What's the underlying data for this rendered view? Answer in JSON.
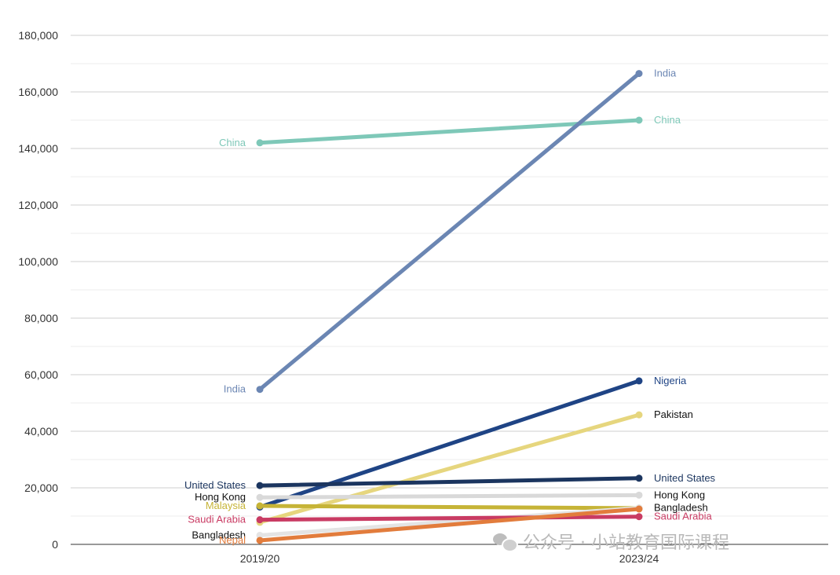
{
  "chart_data": {
    "type": "line",
    "categories": [
      "2019/20",
      "2023/24"
    ],
    "ylim": [
      0,
      180000
    ],
    "yticks": [
      0,
      20000,
      40000,
      60000,
      80000,
      100000,
      120000,
      140000,
      160000,
      180000
    ],
    "ytick_labels": [
      "0",
      "20,000",
      "40,000",
      "60,000",
      "80,000",
      "100,000",
      "120,000",
      "140,000",
      "160,000",
      "180,000"
    ],
    "grid": true,
    "series": [
      {
        "name": "China",
        "values": [
          142000,
          150000
        ],
        "color": "#7ec8b8",
        "label_color": "#7ec8b8",
        "labels": [
          "China",
          "China"
        ]
      },
      {
        "name": "India",
        "values": [
          54800,
          166500
        ],
        "color": "#6b86b3",
        "label_color": "#6b86b3",
        "labels": [
          "India",
          "India"
        ]
      },
      {
        "name": "Nigeria",
        "values": [
          13200,
          57800
        ],
        "color": "#1f4485",
        "label_color": "#1f4485",
        "labels": [
          "",
          "Nigeria"
        ]
      },
      {
        "name": "Pakistan",
        "values": [
          7800,
          45800
        ],
        "color": "#e6d67e",
        "label_color": "#111111",
        "labels": [
          "",
          "Pakistan"
        ]
      },
      {
        "name": "United States",
        "values": [
          20800,
          23400
        ],
        "color": "#1b355f",
        "label_color": "#1b355f",
        "labels": [
          "United States",
          "United States"
        ]
      },
      {
        "name": "Hong Kong",
        "values": [
          16600,
          17400
        ],
        "color": "#d9d9d9",
        "label_color": "#111111",
        "labels": [
          "Hong Kong",
          "Hong Kong"
        ]
      },
      {
        "name": "Malaysia",
        "values": [
          13600,
          12800
        ],
        "color": "#c6b437",
        "label_color": "#c6b437",
        "labels": [
          "Malaysia",
          ""
        ]
      },
      {
        "name": "Bangladesh",
        "values": [
          3200,
          12900
        ],
        "color": "#e4e4e4",
        "label_color": "#111111",
        "labels": [
          "Bangladesh",
          "Bangladesh"
        ]
      },
      {
        "name": "Saudi Arabia",
        "values": [
          8700,
          9800
        ],
        "color": "#c93b63",
        "label_color": "#c93b63",
        "labels": [
          "Saudi Arabia",
          "Saudi Arabia"
        ]
      },
      {
        "name": "Nepal",
        "values": [
          1400,
          12500
        ],
        "color": "#e27c3c",
        "label_color": "#e27c3c",
        "labels": [
          "Nepal",
          ""
        ]
      }
    ]
  },
  "watermark": {
    "icon": "wechat-icon",
    "text": "公众号 · 小站教育国际课程"
  }
}
